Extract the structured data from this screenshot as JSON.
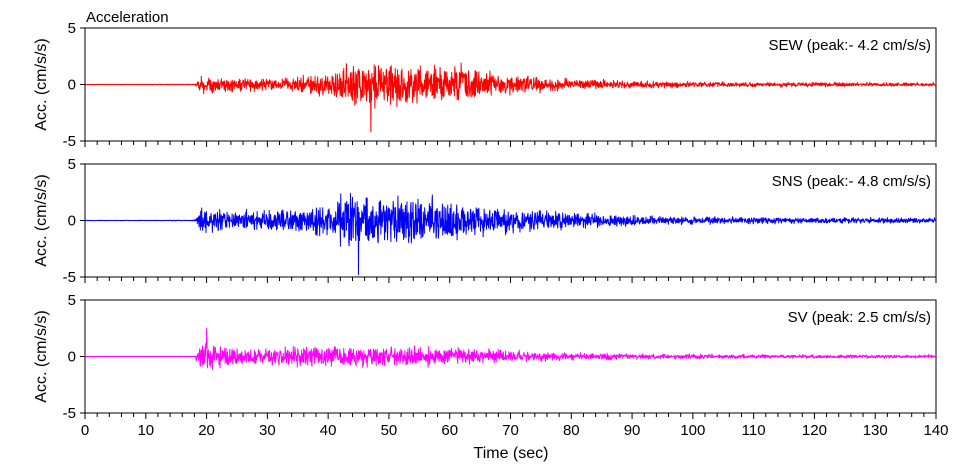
{
  "chart_data": [
    {
      "type": "line",
      "title": "Acceleration",
      "annotation": "SEW (peak:- 4.2 cm/s/s)",
      "ylabel": "Acc. (cm/s/s)",
      "ylim": [
        -5,
        5
      ],
      "yticks": [
        "5",
        "0",
        "-5"
      ],
      "xlim": [
        0,
        140
      ],
      "color": "#ff0000",
      "peak": -4.2,
      "peak_time": 47,
      "series": [
        {
          "x": [
            0,
            10,
            18,
            19,
            20,
            22,
            25,
            30,
            35,
            40,
            43,
            45,
            47,
            50,
            55,
            60,
            62,
            65,
            70,
            75,
            80,
            90,
            100,
            110,
            120,
            130,
            140
          ],
          "envelope": [
            0.02,
            0.02,
            0.05,
            0.9,
            0.9,
            0.8,
            0.7,
            0.7,
            0.9,
            1.4,
            2.2,
            2.6,
            2.8,
            2.5,
            2.0,
            1.8,
            2.2,
            1.5,
            1.1,
            0.8,
            0.6,
            0.4,
            0.3,
            0.25,
            0.25,
            0.2,
            0.2
          ]
        }
      ]
    },
    {
      "type": "line",
      "annotation": "SNS (peak:- 4.8 cm/s/s)",
      "ylabel": "Acc. (cm/s/s)",
      "ylim": [
        -5,
        5
      ],
      "yticks": [
        "5",
        "0",
        "-5"
      ],
      "xlim": [
        0,
        140
      ],
      "color": "#0000ff",
      "peak": -4.8,
      "peak_time": 45,
      "series": [
        {
          "x": [
            0,
            10,
            18,
            19,
            20,
            22,
            25,
            30,
            35,
            40,
            43,
            45,
            47,
            50,
            55,
            58,
            60,
            65,
            70,
            75,
            80,
            90,
            100,
            110,
            120,
            130,
            140
          ],
          "envelope": [
            0.03,
            0.03,
            0.05,
            1.2,
            1.3,
            1.2,
            1.1,
            1.2,
            1.5,
            2.2,
            2.8,
            3.0,
            2.9,
            2.6,
            2.4,
            2.6,
            2.0,
            1.6,
            1.3,
            1.0,
            0.9,
            0.5,
            0.4,
            0.35,
            0.3,
            0.3,
            0.3
          ]
        }
      ]
    },
    {
      "type": "line",
      "annotation": "SV (peak: 2.5 cm/s/s)",
      "ylabel": "Acc. (cm/s/s)",
      "xlabel": "Time (sec)",
      "ylim": [
        -5,
        5
      ],
      "yticks": [
        "5",
        "0",
        "-5"
      ],
      "xlim": [
        0,
        140
      ],
      "xticks": [
        0,
        10,
        20,
        30,
        40,
        50,
        60,
        70,
        80,
        90,
        100,
        110,
        120,
        130,
        140
      ],
      "color": "#ff00ff",
      "peak": 2.5,
      "peak_time": 20,
      "series": [
        {
          "x": [
            0,
            10,
            18,
            19,
            20,
            22,
            25,
            30,
            35,
            40,
            45,
            50,
            55,
            60,
            65,
            70,
            75,
            80,
            90,
            100,
            110,
            120,
            130,
            140
          ],
          "envelope": [
            0.02,
            0.02,
            0.03,
            1.6,
            1.7,
            1.2,
            1.0,
            0.9,
            1.0,
            1.1,
            1.2,
            1.2,
            1.1,
            1.0,
            0.8,
            0.6,
            0.5,
            0.4,
            0.3,
            0.25,
            0.2,
            0.2,
            0.18,
            0.18
          ]
        }
      ]
    }
  ]
}
